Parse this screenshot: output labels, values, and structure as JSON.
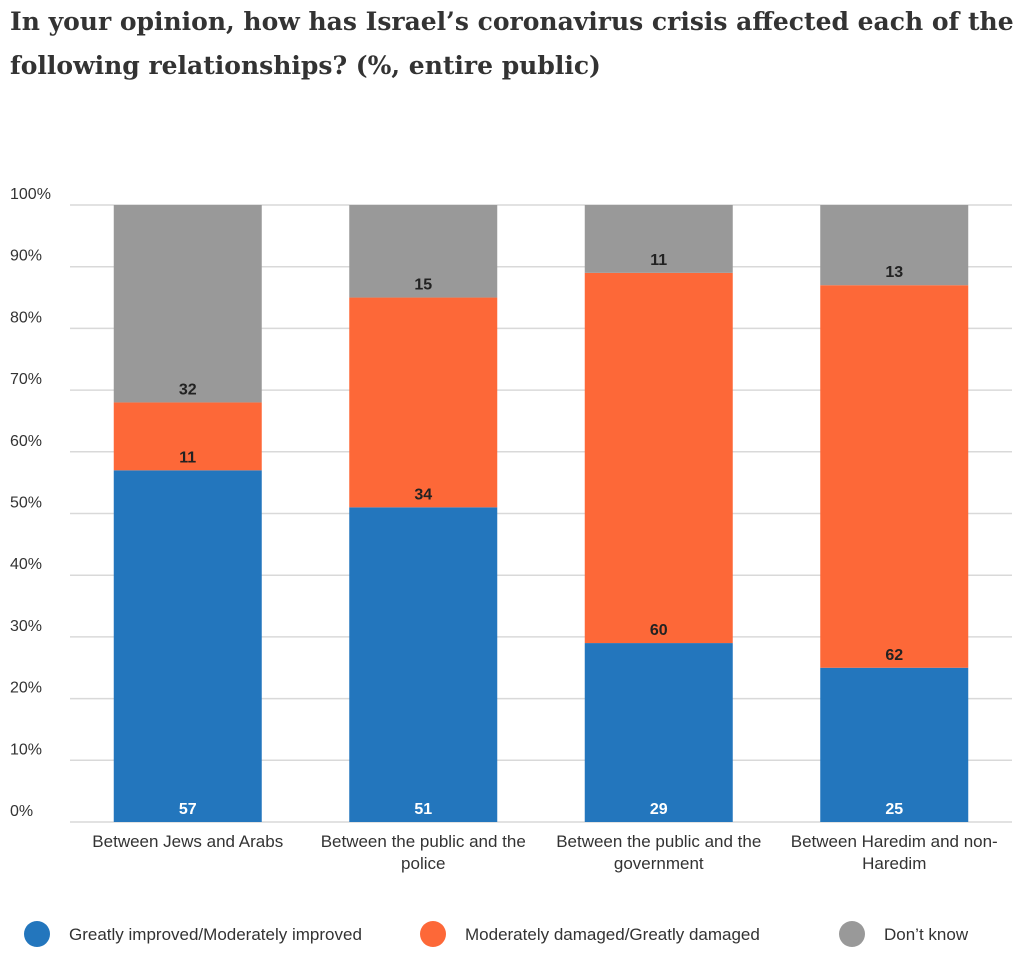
{
  "chart_data": {
    "type": "stacked_bar",
    "title": "In your opinion, how has Israel’s coronavirus crisis affected each of the following relationships? (%, entire public)",
    "categories": [
      "Between Jews and Arabs",
      "Between the public and the police",
      "Between the public and the government",
      "Between Haredim and non-Haredim"
    ],
    "series": [
      {
        "name": "Greatly improved/Moderately improved",
        "color": "#2376bd",
        "values": [
          57,
          51,
          29,
          25
        ]
      },
      {
        "name": "Moderately damaged/Greatly damaged",
        "color": "#fd6838",
        "values": [
          11,
          34,
          60,
          62
        ]
      },
      {
        "name": "Don’t know",
        "color": "#999999",
        "values": [
          32,
          15,
          11,
          13
        ]
      }
    ],
    "ylim": [
      0,
      100
    ],
    "yticks": [
      {
        "value": 0,
        "label": "0%"
      },
      {
        "value": 10,
        "label": "10%"
      },
      {
        "value": 20,
        "label": "20%"
      },
      {
        "value": 30,
        "label": "30%"
      },
      {
        "value": 40,
        "label": "40%"
      },
      {
        "value": 50,
        "label": "50%"
      },
      {
        "value": 60,
        "label": "60%"
      },
      {
        "value": 70,
        "label": "70%"
      },
      {
        "value": 80,
        "label": "80%"
      },
      {
        "value": 90,
        "label": "90%"
      },
      {
        "value": 100,
        "label": "100%"
      }
    ],
    "grid": true
  }
}
